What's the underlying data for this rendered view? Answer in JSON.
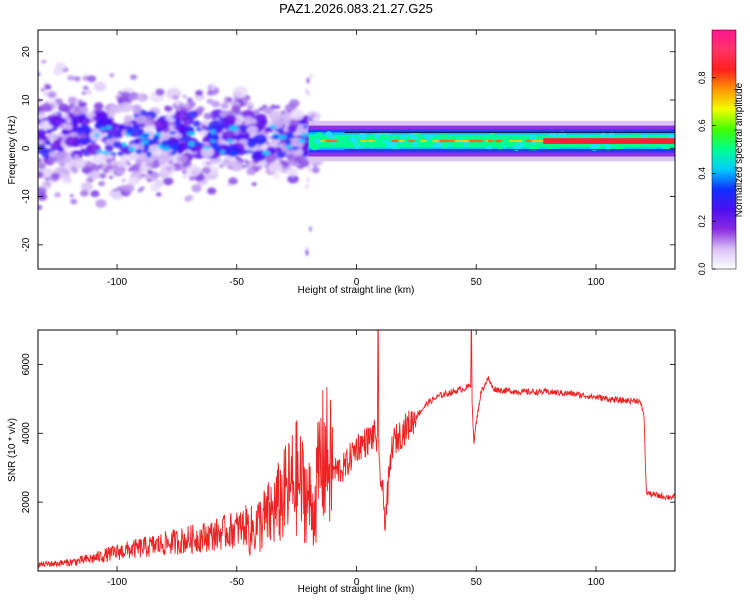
{
  "title": "PAZ1.2026.083.21.27.G25",
  "chart_data": [
    {
      "type": "heatmap",
      "name": "spectrogram",
      "xlabel": "Height of straight line (km)",
      "ylabel": "Frequency (Hz)",
      "xlim": [
        -133,
        133
      ],
      "ylim": [
        -25,
        24.5
      ],
      "xticks": [
        -100,
        -50,
        0,
        50,
        100
      ],
      "yticks": [
        -20,
        -10,
        0,
        10,
        20
      ],
      "colorbar": {
        "label": "Normalized spectral amplitude",
        "range": [
          0.0,
          1.0
        ],
        "ticks": [
          0.0,
          0.2,
          0.4,
          0.6,
          0.8
        ],
        "colormap": "rainbow (violet-blue-cyan-green-yellow-orange-red-magenta)",
        "stops": [
          "#ffffff",
          "#d9c2f5",
          "#8a2be2",
          "#4b0ff0",
          "#1030ff",
          "#00ccff",
          "#00ff90",
          "#40ff00",
          "#f0ff00",
          "#ff9900",
          "#ff2020",
          "#ff3366",
          "#ff1493"
        ]
      },
      "features": {
        "scatter_cloud_range_km": [
          -133,
          -17
        ],
        "scatter_cloud_center_freq_hz": [
          2,
          4
        ],
        "narrow_band_start_km": -20,
        "narrow_band_freq_hz": 1.5,
        "red_core_segments_km": [
          [
            78,
            133
          ]
        ]
      }
    },
    {
      "type": "line",
      "name": "snr",
      "xlabel": "Height of straight line (km)",
      "ylabel": "SNR (10 * v/v)",
      "xlim": [
        -133,
        133
      ],
      "ylim": [
        0,
        7000
      ],
      "xticks": [
        -100,
        -50,
        0,
        50,
        100
      ],
      "yticks": [
        2000,
        4000,
        6000
      ],
      "color": "#ee2222",
      "series": {
        "name": "SNR",
        "x": [
          -133,
          -120,
          -110,
          -100,
          -90,
          -80,
          -70,
          -60,
          -50,
          -45,
          -40,
          -35,
          -30,
          -25,
          -20,
          -18,
          -15,
          -12,
          -10,
          -5,
          0,
          5,
          8,
          10,
          12,
          15,
          20,
          25,
          30,
          35,
          40,
          45,
          48,
          49,
          50,
          52,
          55,
          57,
          60,
          70,
          80,
          90,
          100,
          110,
          118,
          120,
          121,
          122,
          125,
          130,
          133
        ],
        "y": [
          150,
          200,
          300,
          450,
          550,
          650,
          750,
          850,
          1000,
          1100,
          1400,
          1700,
          2200,
          2700,
          2100,
          1700,
          3200,
          3300,
          2900,
          3000,
          3600,
          3800,
          4000,
          2800,
          1500,
          3700,
          4100,
          4500,
          4900,
          5100,
          5200,
          5300,
          5400,
          3700,
          4300,
          5200,
          5600,
          5300,
          5250,
          5200,
          5200,
          5150,
          5050,
          4950,
          4950,
          4600,
          2300,
          2250,
          2200,
          2150,
          2150
        ]
      },
      "spikes": [
        {
          "x": 9,
          "y": 7000
        },
        {
          "x": 48,
          "y": 7000
        }
      ]
    }
  ]
}
